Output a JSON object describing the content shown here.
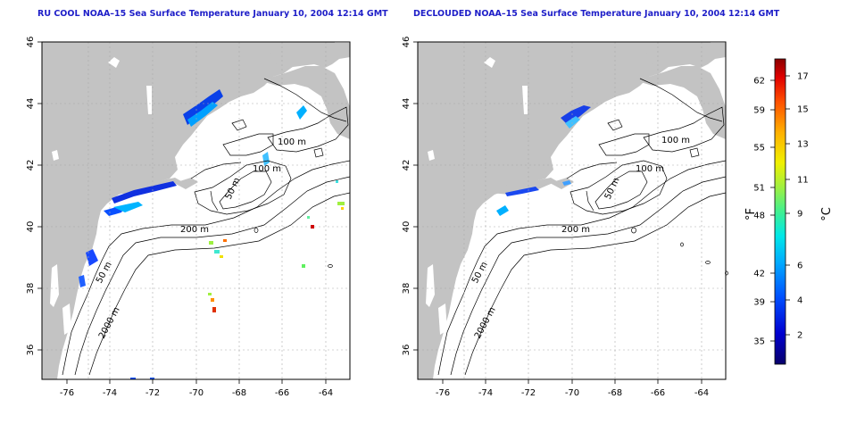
{
  "left_panel": {
    "title": "RU COOL NOAA–15 Sea Surface Temperature January 10, 2004 12:14 GMT"
  },
  "right_panel": {
    "title": "DECLOUDED NOAA–15 Sea Surface Temperature January 10, 2004 12:14 GMT"
  },
  "axes": {
    "x_ticks": [
      "-76",
      "-74",
      "-72",
      "-70",
      "-68",
      "-66",
      "-64"
    ],
    "y_ticks": [
      "36",
      "38",
      "40",
      "42",
      "44",
      "46"
    ]
  },
  "contour_labels": {
    "m100a": "100 m",
    "m100b": "100 m",
    "m50": "50 m",
    "m200": "200 m",
    "m2000": "2000 m"
  },
  "colorbar": {
    "f_unit": "°F",
    "c_unit": "°C",
    "f_ticks": [
      "62",
      "59",
      "55",
      "51",
      "48",
      "42",
      "39",
      "35"
    ],
    "c_ticks": [
      "17",
      "15",
      "13",
      "11",
      "9",
      "6",
      "4",
      "2"
    ],
    "colors": [
      "#08006a",
      "#0000d0",
      "#0050ff",
      "#00a8ff",
      "#00e8e8",
      "#40f090",
      "#a0f040",
      "#f0f000",
      "#ffb000",
      "#ff5000",
      "#e00000",
      "#8a0000"
    ]
  },
  "colors": {
    "land": "#c3c3c3",
    "title": "#1e1ec8"
  }
}
